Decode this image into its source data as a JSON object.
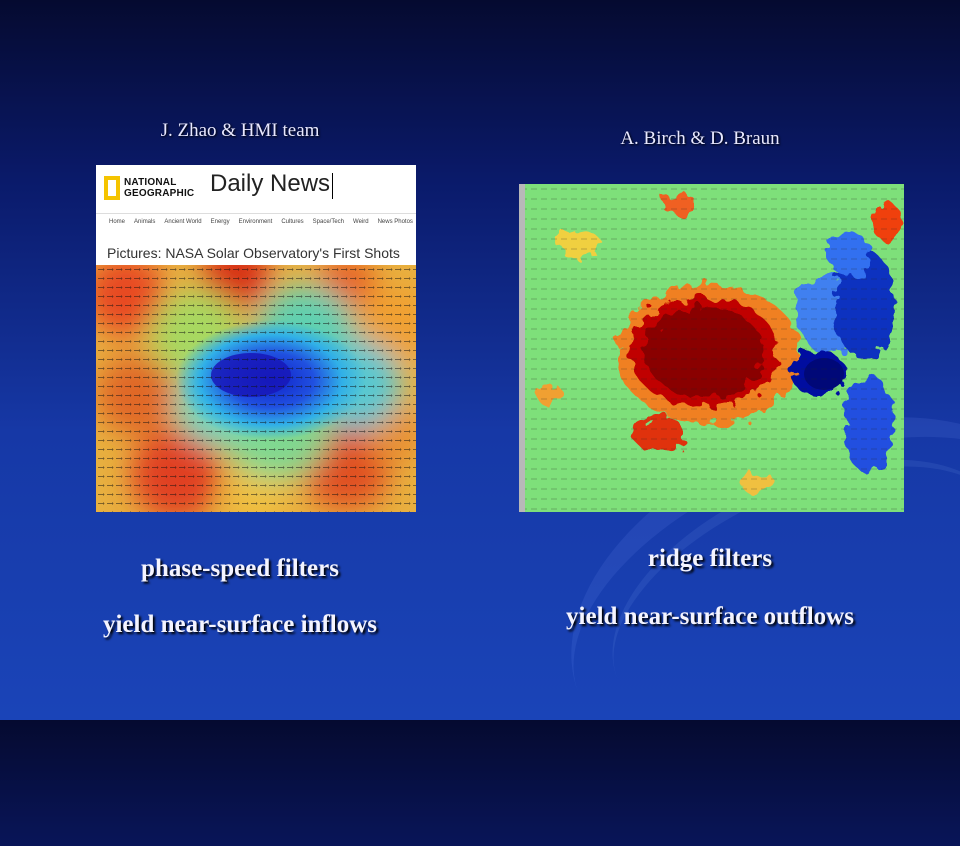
{
  "slide": {
    "credit_left": "J. Zhao & HMI team",
    "credit_right": "A. Birch & D. Braun",
    "caption_left_line1": "phase-speed filters",
    "caption_left_line2": "yield near-surface inflows",
    "caption_right_line1": "ridge filters",
    "caption_right_line2": "yield near-surface outflows"
  },
  "left_image": {
    "logo_text_line1": "NATIONAL",
    "logo_text_line2": "GEOGRAPHIC",
    "site_title": "Daily News",
    "nav": [
      "Home",
      "Animals",
      "Ancient World",
      "Energy",
      "Environment",
      "Cultures",
      "Space/Tech",
      "Weird",
      "News Photos"
    ],
    "headline": "Pictures: NASA Solar Observatory's First Shots"
  },
  "colors": {
    "accent_gold": "#f5c400",
    "text": "#f4f4ff"
  }
}
